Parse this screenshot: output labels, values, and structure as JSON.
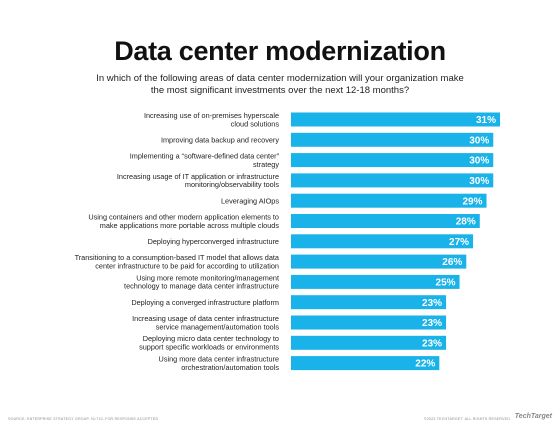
{
  "chart_data": {
    "type": "bar",
    "orientation": "horizontal",
    "title": "Data center modernization",
    "subtitle": "In which of the following areas of data center modernization will your organization make the most significant investments over the next 12-18 months?",
    "categories": [
      [
        "Increasing use of on-premises hyperscale",
        "cloud solutions"
      ],
      [
        "Improving data backup and recovery"
      ],
      [
        "Implementing a “software-defined data center”",
        "strategy"
      ],
      [
        "Increasing usage of IT application or infrastructure",
        "monitoring/observability tools"
      ],
      [
        "Leveraging AIOps"
      ],
      [
        "Using containers and other modern application elements to",
        "make applications more portable across multiple clouds"
      ],
      [
        "Deploying hyperconverged infrastructure"
      ],
      [
        "Transitioning to a consumption-based IT model that allows data",
        "center infrastructure to be paid for according to utilization"
      ],
      [
        "Using more remote monitoring/management",
        "technology to manage data center infrastructure"
      ],
      [
        "Deploying a converged infrastructure platform"
      ],
      [
        "Increasing usage of data center infrastructure",
        "service management/automation tools"
      ],
      [
        "Deploying micro data center technology to",
        "support specific workloads or environments"
      ],
      [
        "Using more data center infrastructure",
        "orchestration/automation tools"
      ]
    ],
    "values": [
      31,
      30,
      30,
      30,
      29,
      28,
      27,
      26,
      25,
      23,
      23,
      23,
      22
    ],
    "value_labels": [
      "31%",
      "30%",
      "30%",
      "30%",
      "29%",
      "28%",
      "27%",
      "26%",
      "25%",
      "23%",
      "23%",
      "23%",
      "22%"
    ],
    "bar_color": "#19b2e9",
    "label_color": "#ffffff",
    "xlim": [
      0,
      31
    ]
  },
  "footer": {
    "source": "SOURCE: ENTERPRISE STRATEGY GROUP, N=710, FOR RESPONSE ACCEPTED",
    "copyright": "©2023 TECHTARGET. ALL RIGHTS RESERVED",
    "logo": "TechTarget"
  }
}
